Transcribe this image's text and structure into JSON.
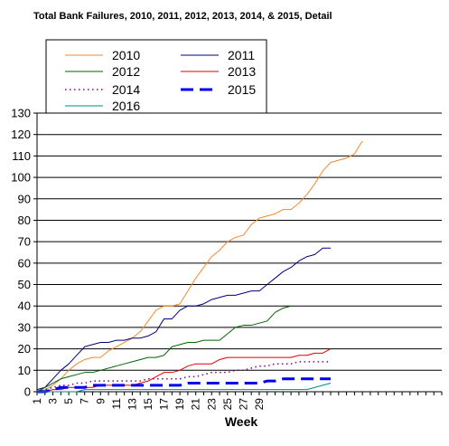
{
  "chart_data": {
    "type": "line",
    "title": "Total Bank Failures, 2010, 2011, 2012, 2013, 2014, & 2015, Detail",
    "xlabel": "Week",
    "ylabel": "",
    "xlim": [
      1,
      52
    ],
    "ylim": [
      0,
      130
    ],
    "yticks": [
      0,
      10,
      20,
      30,
      40,
      50,
      60,
      70,
      80,
      90,
      100,
      110,
      120,
      130
    ],
    "xticks": [
      1,
      3,
      5,
      7,
      9,
      11,
      13,
      15,
      17,
      19,
      21,
      23,
      25,
      27,
      29
    ],
    "x_tick_labels": [
      "1",
      "3",
      "5",
      "7",
      "9",
      "11",
      "13",
      "15",
      "17",
      "19",
      "21",
      "23",
      "25",
      "27",
      "29"
    ],
    "grid": "horizontal",
    "legend_position": "top-left",
    "series": [
      {
        "name": "2010",
        "color": "#f28a30",
        "style": "solid",
        "width": 1,
        "values": [
          0,
          1,
          3,
          6,
          10,
          13,
          15,
          16,
          16,
          19,
          21,
          23,
          25,
          28,
          33,
          38,
          40,
          40,
          41,
          47,
          53,
          58,
          63,
          66,
          70,
          72,
          73,
          78,
          81,
          82,
          83,
          85,
          85,
          88,
          92,
          97,
          103,
          107,
          108,
          109,
          111,
          117
        ]
      },
      {
        "name": "2011",
        "color": "#00007f",
        "style": "solid",
        "width": 1,
        "values": [
          1,
          2,
          6,
          10,
          13,
          17,
          21,
          22,
          23,
          23,
          24,
          24,
          25,
          25,
          26,
          28,
          34,
          34,
          38,
          40,
          40,
          41,
          43,
          44,
          45,
          45,
          46,
          47,
          47,
          50,
          53,
          56,
          58,
          61,
          63,
          64,
          67,
          67
        ]
      },
      {
        "name": "2012",
        "color": "#006400",
        "style": "solid",
        "width": 1,
        "values": [
          0,
          2,
          4,
          6,
          7,
          8,
          9,
          9,
          10,
          11,
          12,
          13,
          14,
          15,
          16,
          16,
          17,
          21,
          22,
          23,
          23,
          24,
          24,
          24,
          27,
          30,
          31,
          31,
          32,
          33,
          37,
          39,
          40
        ]
      },
      {
        "name": "2013",
        "color": "#e00000",
        "style": "solid",
        "width": 1,
        "values": [
          0,
          0,
          1,
          1,
          2,
          2,
          2,
          2,
          3,
          3,
          3,
          3,
          3,
          4,
          5,
          7,
          9,
          9,
          10,
          12,
          13,
          13,
          13,
          15,
          16,
          16,
          16,
          16,
          16,
          16,
          16,
          16,
          16,
          17,
          17,
          18,
          18,
          20
        ]
      },
      {
        "name": "2014",
        "color": "#800080",
        "style": "dotted",
        "width": 1.5,
        "values": [
          0,
          1,
          2,
          3,
          3,
          4,
          4,
          5,
          5,
          5,
          5,
          5,
          5,
          5,
          6,
          6,
          6,
          6,
          6,
          7,
          7,
          8,
          9,
          9,
          9,
          10,
          10,
          11,
          12,
          12,
          13,
          13,
          13,
          14,
          14,
          14,
          14,
          14
        ]
      },
      {
        "name": "2015",
        "color": "#0000ee",
        "style": "dashed",
        "width": 3,
        "values": [
          0,
          0,
          1,
          2,
          2,
          2,
          2,
          3,
          3,
          3,
          3,
          3,
          3,
          3,
          3,
          3,
          3,
          3,
          3,
          4,
          4,
          4,
          4,
          4,
          4,
          4,
          4,
          4,
          4,
          5,
          5,
          6,
          6,
          6,
          6,
          6,
          6,
          6
        ]
      },
      {
        "name": "2016",
        "color": "#008b8b",
        "style": "solid",
        "width": 1,
        "values": [
          0,
          0,
          0,
          0,
          0,
          0,
          1,
          1,
          1,
          1,
          1,
          1,
          1,
          1,
          1,
          1,
          1,
          1,
          1,
          1,
          1,
          1,
          1,
          1,
          1,
          1,
          1,
          1,
          1,
          1,
          1,
          1,
          1,
          1,
          1,
          2,
          3,
          4
        ]
      }
    ]
  }
}
